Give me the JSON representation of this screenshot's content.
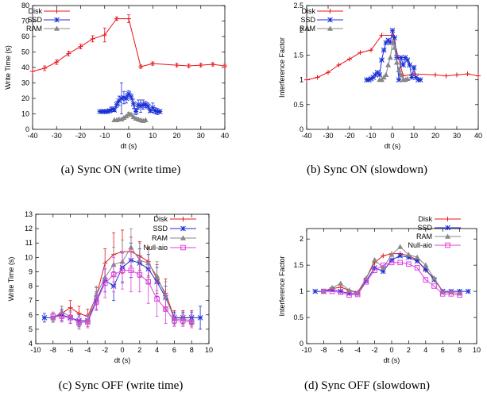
{
  "figure": {
    "captions": [
      "(a)  Sync ON (write time)",
      "(b)  Sync ON (slowdown)",
      "(c)  Sync OFF (write time)",
      "(d)  Sync OFF (slowdown)"
    ]
  },
  "colors": {
    "Disk": "#e8141a",
    "SSD": "#1a2fd6",
    "RAM": "#888888",
    "Null-aio": "#e040e0"
  },
  "chart_data": [
    {
      "type": "line",
      "xlabel": "dt (s)",
      "ylabel": "Write Time (s)",
      "xlim": [
        -40,
        40
      ],
      "ylim": [
        0,
        80
      ],
      "xticks": [
        -40,
        -30,
        -20,
        -10,
        0,
        10,
        20,
        30,
        40
      ],
      "yticks": [
        0,
        10,
        20,
        30,
        40,
        50,
        60,
        70,
        80
      ],
      "legend": "top-left",
      "series": [
        {
          "name": "Disk",
          "marker": "plus",
          "x": [
            -40,
            -35,
            -30,
            -25,
            -20,
            -15,
            -10,
            -5,
            0,
            5,
            10,
            20,
            25,
            30,
            35,
            40
          ],
          "y": [
            37.5,
            39.5,
            43.5,
            49,
            53.5,
            58.5,
            61,
            71.5,
            71.5,
            40.5,
            42.5,
            41.5,
            41,
            41.5,
            42,
            41
          ],
          "err": [
            0,
            1.5,
            1.5,
            1.5,
            1.5,
            2,
            4.5,
            1,
            2.5,
            1,
            1,
            1,
            1,
            1,
            1,
            1
          ]
        },
        {
          "name": "SSD",
          "marker": "star",
          "x": [
            -12,
            -11,
            -10,
            -9,
            -8,
            -7,
            -6,
            -5,
            -4,
            -3,
            -2,
            -1,
            0,
            1,
            2,
            3,
            4,
            5,
            6,
            7,
            8,
            9,
            10,
            11,
            12,
            13
          ],
          "y": [
            11.5,
            11.5,
            11.5,
            11.5,
            12,
            13,
            12.5,
            16,
            18.5,
            20,
            20.5,
            20,
            23,
            21,
            16.5,
            11.5,
            16,
            15,
            16,
            16,
            15,
            12,
            14,
            12,
            11.5,
            11.5
          ],
          "err": [
            0,
            1,
            1,
            1,
            1,
            1.5,
            1,
            2,
            3,
            10,
            4,
            3,
            2,
            2,
            3,
            2,
            3,
            4,
            3,
            2,
            2,
            1,
            3,
            2,
            2,
            1
          ]
        },
        {
          "name": "RAM",
          "marker": "triangle",
          "x": [
            -6,
            -5,
            -4,
            -3,
            -2,
            -1,
            0,
            1,
            2,
            3,
            4,
            5,
            6,
            7
          ],
          "y": [
            6,
            6,
            6.5,
            6.5,
            7.5,
            8.5,
            10,
            9.5,
            8,
            7,
            6.5,
            6,
            5.5,
            6
          ],
          "err": [
            0,
            0.5,
            0.5,
            0.5,
            0.5,
            0.5,
            1,
            1,
            0.5,
            0.5,
            0.5,
            0.5,
            0.5,
            0.5
          ]
        }
      ]
    },
    {
      "type": "line",
      "xlabel": "dt (s)",
      "ylabel": "Interference Factor",
      "xlim": [
        -40,
        40
      ],
      "ylim": [
        0,
        2.5
      ],
      "xticks": [
        -40,
        -30,
        -20,
        -10,
        0,
        10,
        20,
        30,
        40
      ],
      "yticks": [
        0,
        0.5,
        1,
        1.5,
        2,
        2.5
      ],
      "ytick_labels": [
        "0",
        "0.5",
        "1",
        "1.5",
        "2",
        "2.5"
      ],
      "legend": "top-left",
      "series": [
        {
          "name": "Disk",
          "marker": "plus",
          "x": [
            -40,
            -35,
            -30,
            -25,
            -20,
            -15,
            -10,
            -5,
            0,
            5,
            10,
            20,
            25,
            30,
            35,
            40
          ],
          "y": [
            1.0,
            1.05,
            1.15,
            1.3,
            1.42,
            1.55,
            1.6,
            1.9,
            1.9,
            1.08,
            1.12,
            1.1,
            1.08,
            1.1,
            1.12,
            1.08
          ]
        },
        {
          "name": "SSD",
          "marker": "star",
          "x": [
            -12,
            -11,
            -10,
            -9,
            -8,
            -7,
            -6,
            -5,
            -4,
            -3,
            -2,
            -1,
            0,
            1,
            2,
            3,
            4,
            5,
            6,
            7,
            8,
            9,
            10,
            11,
            12,
            13
          ],
          "y": [
            1.0,
            1.0,
            1.02,
            1.05,
            1.1,
            1.15,
            1.1,
            1.4,
            1.6,
            1.75,
            1.8,
            1.75,
            2.0,
            1.85,
            1.45,
            1.0,
            1.45,
            1.3,
            1.45,
            1.4,
            1.3,
            1.05,
            1.25,
            1.05,
            1.0,
            1.0
          ]
        },
        {
          "name": "RAM",
          "marker": "triangle",
          "x": [
            -6,
            -5,
            -4,
            -3,
            -2,
            -1,
            0,
            1,
            2,
            3,
            4,
            5,
            6,
            7
          ],
          "y": [
            1.0,
            1.0,
            1.05,
            1.1,
            1.3,
            1.45,
            1.75,
            1.65,
            1.35,
            1.2,
            1.1,
            1.0,
            1.0,
            1.02
          ]
        }
      ]
    },
    {
      "type": "line",
      "xlabel": "dt (s)",
      "ylabel": "Write Time (s)",
      "xlim": [
        -10,
        10
      ],
      "ylim": [
        4,
        13
      ],
      "xticks": [
        -10,
        -8,
        -6,
        -4,
        -2,
        0,
        2,
        4,
        6,
        8,
        10
      ],
      "yticks": [
        4,
        5,
        6,
        7,
        8,
        9,
        10,
        11,
        12,
        13
      ],
      "legend": "top-right",
      "series": [
        {
          "name": "Disk",
          "marker": "plus",
          "x": [
            -8,
            -7,
            -6,
            -5,
            -4,
            -3,
            -2,
            -1,
            0,
            1,
            2,
            3,
            4,
            5,
            6,
            7,
            8
          ],
          "y": [
            5.8,
            6.1,
            6.5,
            6.1,
            5.9,
            7.3,
            9.6,
            10.2,
            10.4,
            10.4,
            10.1,
            9.7,
            8.5,
            7.5,
            5.8,
            5.8,
            5.8
          ],
          "err": [
            0.3,
            0.5,
            0.5,
            0.5,
            0.5,
            0.6,
            1.0,
            1.5,
            1.5,
            1.0,
            1.0,
            1.0,
            1.0,
            1.0,
            0.5,
            0.5,
            0.5
          ]
        },
        {
          "name": "SSD",
          "marker": "star",
          "x": [
            -9,
            -8,
            -7,
            -6,
            -5,
            -4,
            -3,
            -2,
            -1,
            0,
            1,
            2,
            3,
            4,
            5,
            6,
            7,
            8,
            9
          ],
          "y": [
            5.8,
            5.8,
            6.0,
            5.8,
            5.6,
            5.6,
            7.0,
            8.4,
            8.0,
            9.3,
            9.8,
            9.6,
            9.2,
            8.3,
            7.2,
            5.8,
            5.8,
            5.8,
            5.8
          ],
          "err": [
            0.3,
            0.3,
            0.4,
            0.4,
            0.4,
            0.4,
            0.6,
            0.8,
            1.0,
            1.0,
            1.2,
            1.0,
            1.0,
            1.0,
            0.8,
            0.4,
            0.4,
            0.4,
            0.8
          ]
        },
        {
          "name": "RAM",
          "marker": "triangle",
          "x": [
            -8,
            -7,
            -6,
            -5,
            -4,
            -3,
            -2,
            -1,
            0,
            1,
            2,
            3,
            4,
            5,
            6,
            7,
            8
          ],
          "y": [
            5.8,
            6.2,
            5.9,
            5.4,
            5.6,
            7.4,
            8.6,
            9.5,
            9.7,
            10.7,
            9.8,
            9.6,
            8.7,
            7.3,
            5.7,
            5.7,
            5.6
          ],
          "err": [
            0.3,
            0.4,
            0.4,
            0.4,
            0.4,
            0.6,
            1.0,
            1.2,
            1.5,
            1.3,
            1.2,
            1.0,
            1.0,
            1.0,
            0.4,
            0.4,
            0.4
          ]
        },
        {
          "name": "Null-aio",
          "marker": "square",
          "x": [
            -8,
            -7,
            -6,
            -5,
            -4,
            -3,
            -2,
            -1,
            0,
            1,
            2,
            3,
            4,
            5,
            6,
            7,
            8
          ],
          "y": [
            5.9,
            5.9,
            5.8,
            5.5,
            5.5,
            6.9,
            8.2,
            8.8,
            9.1,
            9.1,
            8.8,
            8.3,
            7.1,
            6.4,
            5.6,
            5.6,
            5.5
          ],
          "err": [
            0.3,
            0.4,
            0.4,
            0.4,
            0.4,
            0.6,
            1.0,
            1.2,
            1.3,
            1.5,
            1.2,
            1.5,
            1.2,
            1.0,
            0.4,
            0.4,
            0.4
          ]
        }
      ]
    },
    {
      "type": "line",
      "xlabel": "dt (s)",
      "ylabel": "Interference Factor",
      "xlim": [
        -10,
        10
      ],
      "ylim": [
        0,
        2.2
      ],
      "xticks": [
        -10,
        -8,
        -6,
        -4,
        -2,
        0,
        2,
        4,
        6,
        8,
        10
      ],
      "yticks": [
        0,
        0.5,
        1,
        1.5,
        2
      ],
      "ytick_labels": [
        "0",
        "0.5",
        "1",
        "1.5",
        "2"
      ],
      "legend": "top-right",
      "series": [
        {
          "name": "Disk",
          "marker": "plus",
          "x": [
            -8,
            -7,
            -6,
            -5,
            -4,
            -3,
            -2,
            -1,
            0,
            1,
            2,
            3,
            4,
            5,
            6,
            7,
            8
          ],
          "y": [
            1.0,
            1.05,
            1.08,
            1.02,
            0.98,
            1.25,
            1.55,
            1.68,
            1.72,
            1.72,
            1.68,
            1.6,
            1.4,
            1.25,
            1.0,
            1.0,
            1.0
          ]
        },
        {
          "name": "SSD",
          "marker": "star",
          "x": [
            -9,
            -8,
            -7,
            -6,
            -5,
            -4,
            -3,
            -2,
            -1,
            0,
            1,
            2,
            3,
            4,
            5,
            6,
            7,
            8,
            9
          ],
          "y": [
            1.0,
            1.0,
            1.03,
            1.0,
            0.96,
            0.96,
            1.2,
            1.45,
            1.38,
            1.6,
            1.68,
            1.65,
            1.58,
            1.42,
            1.22,
            1.0,
            1.0,
            1.0,
            1.0
          ]
        },
        {
          "name": "RAM",
          "marker": "triangle",
          "x": [
            -8,
            -7,
            -6,
            -5,
            -4,
            -3,
            -2,
            -1,
            0,
            1,
            2,
            3,
            4,
            5,
            6,
            7,
            8
          ],
          "y": [
            1.0,
            1.07,
            1.15,
            1.02,
            0.96,
            1.25,
            1.6,
            1.45,
            1.7,
            1.85,
            1.7,
            1.65,
            1.5,
            1.25,
            0.98,
            0.98,
            0.96
          ]
        },
        {
          "name": "Null-aio",
          "marker": "square",
          "x": [
            -8,
            -7,
            -6,
            -5,
            -4,
            -3,
            -2,
            -1,
            0,
            1,
            2,
            3,
            4,
            5,
            6,
            7,
            8
          ],
          "y": [
            1.0,
            1.0,
            0.98,
            0.93,
            0.94,
            1.18,
            1.4,
            1.5,
            1.55,
            1.55,
            1.52,
            1.45,
            1.22,
            1.1,
            0.95,
            0.95,
            0.93
          ]
        }
      ]
    }
  ]
}
